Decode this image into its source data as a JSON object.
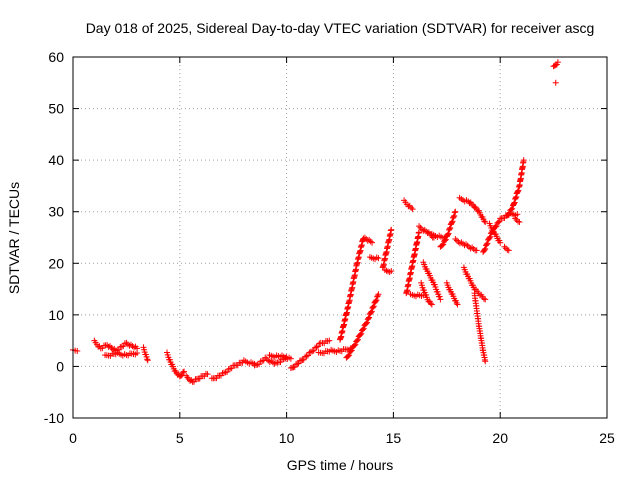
{
  "chart_data": {
    "type": "scatter",
    "title": "Day 018 of 2025, Sidereal Day-to-day VTEC variation (SDTVAR) for receiver ascg",
    "xlabel": "GPS time / hours",
    "ylabel": "SDTVAR / TECUs",
    "xlim": [
      0,
      25
    ],
    "ylim": [
      -10,
      60
    ],
    "xticks": [
      "0",
      "5",
      "10",
      "15",
      "20",
      "25"
    ],
    "yticks": [
      "-10",
      "0",
      "10",
      "20",
      "30",
      "40",
      "50",
      "60"
    ],
    "grid": true,
    "marker": "plus",
    "color": "#ff0000",
    "segments": [
      {
        "x": [
          0.0,
          0.2
        ],
        "y": [
          3.0,
          3.0
        ]
      },
      {
        "x": [
          1.0,
          1.3,
          1.6,
          2.0,
          2.5,
          3.0
        ],
        "y": [
          4.8,
          3.5,
          4.2,
          3.0,
          4.5,
          3.5
        ]
      },
      {
        "x": [
          1.5,
          2.0,
          2.5,
          3.0
        ],
        "y": [
          2.0,
          2.5,
          2.2,
          2.6
        ]
      },
      {
        "x": [
          3.3,
          3.5
        ],
        "y": [
          3.5,
          1.2
        ]
      },
      {
        "x": [
          4.4,
          4.6,
          4.8,
          5.0,
          5.2
        ],
        "y": [
          2.5,
          0.5,
          -1.0,
          -2.0,
          -1.0
        ]
      },
      {
        "x": [
          5.3,
          5.6,
          6.0,
          6.3
        ],
        "y": [
          -2.0,
          -3.0,
          -2.0,
          -1.5
        ]
      },
      {
        "x": [
          6.5,
          7.0,
          7.5,
          8.0,
          8.5
        ],
        "y": [
          -2.5,
          -1.5,
          0.0,
          1.0,
          0.5
        ]
      },
      {
        "x": [
          8.5,
          9.0,
          9.5,
          10.0
        ],
        "y": [
          0.0,
          1.5,
          0.5,
          1.8
        ]
      },
      {
        "x": [
          9.2,
          9.7,
          10.2
        ],
        "y": [
          2.0,
          2.0,
          1.5
        ]
      },
      {
        "x": [
          10.2,
          10.5,
          10.8,
          11.2,
          11.6,
          12.0
        ],
        "y": [
          -0.5,
          0.5,
          1.5,
          3.0,
          4.5,
          5.0
        ]
      },
      {
        "x": [
          11.5,
          12.0,
          12.5,
          13.0
        ],
        "y": [
          2.5,
          3.0,
          3.0,
          3.5
        ]
      },
      {
        "x": [
          12.5,
          12.9,
          13.3,
          13.6,
          14.0
        ],
        "y": [
          5.0,
          12.0,
          20.0,
          25.0,
          24.0
        ]
      },
      {
        "x": [
          12.8,
          13.3,
          13.8,
          14.3
        ],
        "y": [
          1.5,
          5.0,
          9.0,
          14.0
        ]
      },
      {
        "x": [
          13.9,
          14.3
        ],
        "y": [
          21.0,
          21.0
        ]
      },
      {
        "x": [
          14.5,
          14.9
        ],
        "y": [
          19.0,
          26.5
        ]
      },
      {
        "x": [
          14.6,
          14.9
        ],
        "y": [
          18.5,
          18.5
        ]
      },
      {
        "x": [
          15.5,
          15.9
        ],
        "y": [
          32.0,
          30.5
        ]
      },
      {
        "x": [
          15.6,
          15.9,
          16.2
        ],
        "y": [
          14.0,
          20.0,
          26.0
        ]
      },
      {
        "x": [
          15.8,
          16.4
        ],
        "y": [
          13.8,
          13.8
        ]
      },
      {
        "x": [
          16.2,
          16.6,
          16.9
        ],
        "y": [
          27.0,
          26.0,
          25.0
        ]
      },
      {
        "x": [
          16.3,
          16.6,
          16.8
        ],
        "y": [
          16.0,
          13.0,
          12.0
        ]
      },
      {
        "x": [
          16.4,
          16.9,
          17.2
        ],
        "y": [
          20.0,
          16.0,
          13.0
        ]
      },
      {
        "x": [
          16.8,
          17.4
        ],
        "y": [
          25.5,
          25.0
        ]
      },
      {
        "x": [
          17.2,
          17.5,
          17.9
        ],
        "y": [
          23.0,
          25.0,
          30.0
        ]
      },
      {
        "x": [
          17.5,
          18.0
        ],
        "y": [
          16.0,
          12.0
        ]
      },
      {
        "x": [
          17.9,
          18.4,
          18.9
        ],
        "y": [
          24.5,
          23.5,
          22.5
        ]
      },
      {
        "x": [
          18.1,
          18.5,
          18.8,
          19.0,
          19.3
        ],
        "y": [
          32.5,
          32.0,
          31.0,
          30.0,
          28.0
        ]
      },
      {
        "x": [
          18.3,
          18.8,
          19.3
        ],
        "y": [
          19.0,
          15.0,
          13.0
        ]
      },
      {
        "x": [
          18.8,
          19.0,
          19.2,
          19.3
        ],
        "y": [
          14.0,
          8.0,
          3.0,
          1.0
        ]
      },
      {
        "x": [
          19.2,
          19.6,
          20.0,
          20.4,
          20.8
        ],
        "y": [
          22.0,
          26.0,
          28.5,
          29.5,
          29.5
        ]
      },
      {
        "x": [
          19.5,
          20.0
        ],
        "y": [
          27.5,
          24.0
        ]
      },
      {
        "x": [
          20.2,
          20.4
        ],
        "y": [
          23.0,
          22.5
        ]
      },
      {
        "x": [
          20.3,
          20.6,
          20.9,
          21.1
        ],
        "y": [
          29.0,
          31.0,
          35.0,
          40.0
        ]
      },
      {
        "x": [
          20.7,
          20.9
        ],
        "y": [
          28.5,
          28.0
        ]
      },
      {
        "x": [
          22.5,
          22.7
        ],
        "y": [
          58.0,
          59.0
        ]
      },
      {
        "x": [
          22.6
        ],
        "y": [
          55.0
        ]
      }
    ]
  }
}
